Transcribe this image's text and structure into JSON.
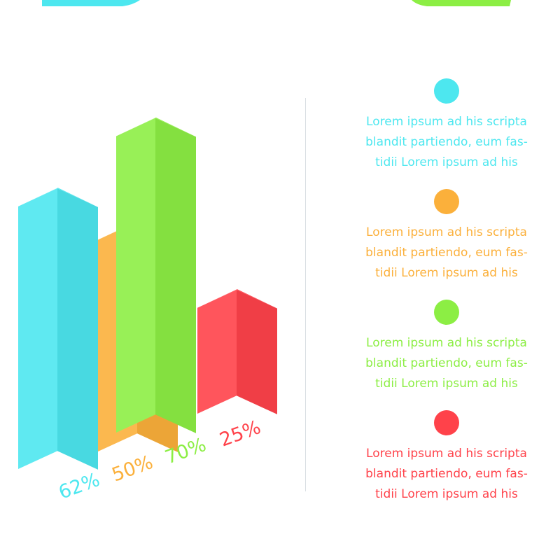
{
  "chart_data": {
    "type": "bar",
    "categories": [
      "",
      "",
      "",
      ""
    ],
    "values": [
      62,
      50,
      70,
      25
    ],
    "value_labels": [
      "62%",
      "50%",
      "70%",
      "25%"
    ],
    "ylim": [
      0,
      100
    ],
    "grid": false,
    "style": "3d-isometric",
    "colors": [
      "#4de7ef",
      "#fbb03b",
      "#8cee44",
      "#ff424a"
    ]
  },
  "legend": [
    {
      "color": "#4de7ef",
      "lines": [
        "Lorem ipsum ad his scripta",
        "blandit partiendo, eum fas-",
        "tidii Lorem ipsum ad his"
      ]
    },
    {
      "color": "#fbb03b",
      "lines": [
        "Lorem ipsum ad his scripta",
        "blandit partiendo, eum fas-",
        "tidii Lorem ipsum ad his"
      ]
    },
    {
      "color": "#8cee44",
      "lines": [
        "Lorem ipsum ad his scripta",
        "blandit partiendo, eum fas-",
        "tidii Lorem ipsum ad his"
      ]
    },
    {
      "color": "#ff424a",
      "lines": [
        "Lorem ipsum ad his scripta",
        "blandit partiendo, eum fas-",
        "tidii Lorem ipsum ad his"
      ]
    }
  ]
}
